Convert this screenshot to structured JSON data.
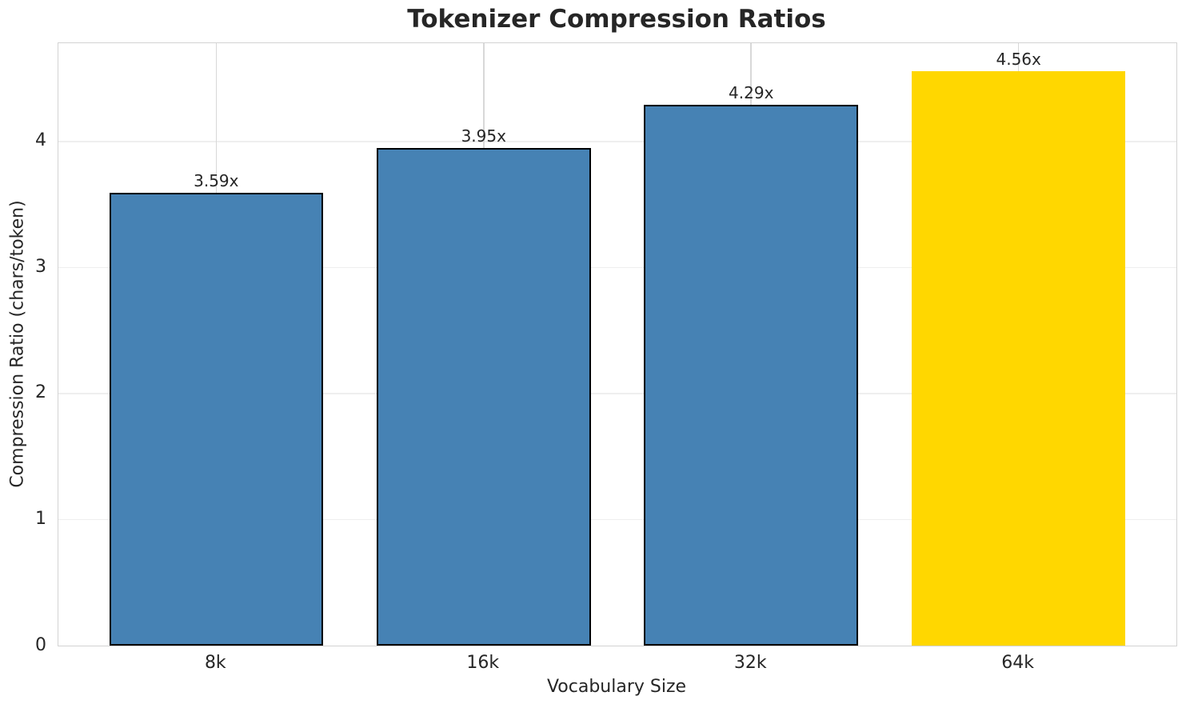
{
  "chart_data": {
    "type": "bar",
    "title": "Tokenizer Compression Ratios",
    "xlabel": "Vocabulary Size",
    "ylabel": "Compression Ratio (chars/token)",
    "categories": [
      "8k",
      "16k",
      "32k",
      "64k"
    ],
    "values": [
      3.59,
      3.95,
      4.29,
      4.56
    ],
    "bar_labels": [
      "3.59x",
      "3.95x",
      "4.29x",
      "4.56x"
    ],
    "highlight_index": 3,
    "yticks": [
      "0",
      "1",
      "2",
      "3",
      "4"
    ],
    "ylim": [
      0,
      4.78
    ],
    "xlim": [
      -0.59,
      3.59
    ],
    "bar_width": 0.8,
    "grid": true,
    "legend_position": "none",
    "colors": {
      "bar": "#4682B4",
      "bar_highlight": "#FFD700",
      "bar_edge": "#000000",
      "grid_horizontal": "#efefef",
      "grid_vertical": "#d8d8d8",
      "spine": "#d3d3d3",
      "text": "#262626",
      "background": "#ffffff"
    }
  }
}
